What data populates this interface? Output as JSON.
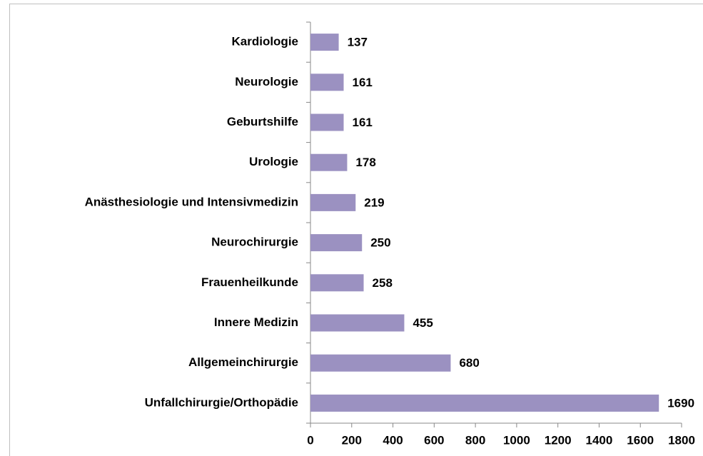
{
  "chart_data": {
    "type": "bar",
    "orientation": "horizontal",
    "categories": [
      "Kardiologie",
      "Neurologie",
      "Geburtshilfe",
      "Urologie",
      "Anästhesiologie und Intensivmedizin",
      "Neurochirurgie",
      "Frauenheilkunde",
      "Innere Medizin",
      "Allgemeinchirurgie",
      "Unfallchirurgie/Orthopädie"
    ],
    "values": [
      137,
      161,
      161,
      178,
      219,
      250,
      258,
      455,
      680,
      1690
    ],
    "color": "#9b91c1",
    "xlim": [
      0,
      1800
    ],
    "xticks": [
      0,
      200,
      400,
      600,
      800,
      1000,
      1200,
      1400,
      1600,
      1800
    ],
    "grid": false
  }
}
